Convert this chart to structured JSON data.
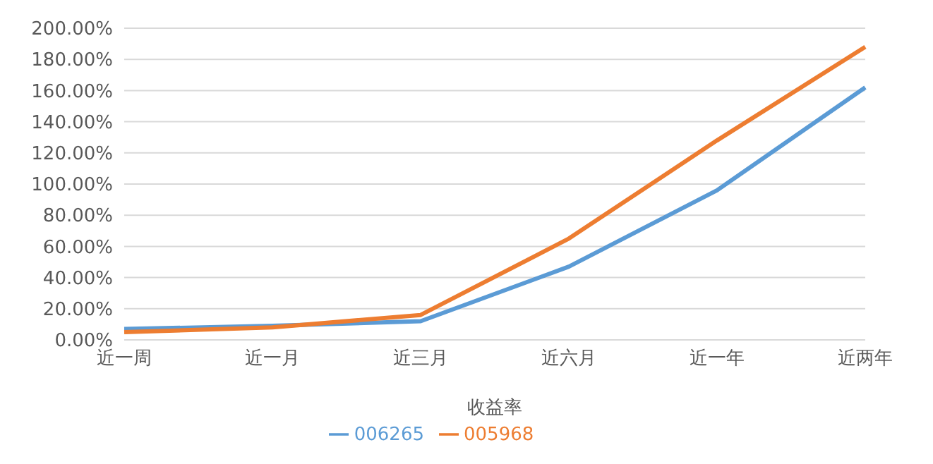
{
  "chart_data": {
    "type": "line",
    "xlabel": "收益率",
    "categories": [
      "近一周",
      "近一月",
      "近三月",
      "近六月",
      "近一年",
      "近两年"
    ],
    "series": [
      {
        "name": "006265",
        "color": "#5b9bd5",
        "values": [
          7,
          9,
          12,
          47,
          96,
          162
        ]
      },
      {
        "name": "005968",
        "color": "#ed7d31",
        "values": [
          5,
          8,
          16,
          65,
          128,
          188
        ]
      }
    ],
    "ylim": [
      0,
      200
    ],
    "yticks": [
      {
        "value": 0,
        "label": "0.00%"
      },
      {
        "value": 20,
        "label": "20.00%"
      },
      {
        "value": 40,
        "label": "40.00%"
      },
      {
        "value": 60,
        "label": "60.00%"
      },
      {
        "value": 80,
        "label": "80.00%"
      },
      {
        "value": 100,
        "label": "100.00%"
      },
      {
        "value": 120,
        "label": "120.00%"
      },
      {
        "value": 140,
        "label": "140.00%"
      },
      {
        "value": 160,
        "label": "160.00%"
      },
      {
        "value": 180,
        "label": "180.00%"
      },
      {
        "value": 200,
        "label": "200.00%"
      }
    ],
    "grid": "y",
    "legend": "bottom",
    "marker": "none",
    "line_style": "solid"
  }
}
